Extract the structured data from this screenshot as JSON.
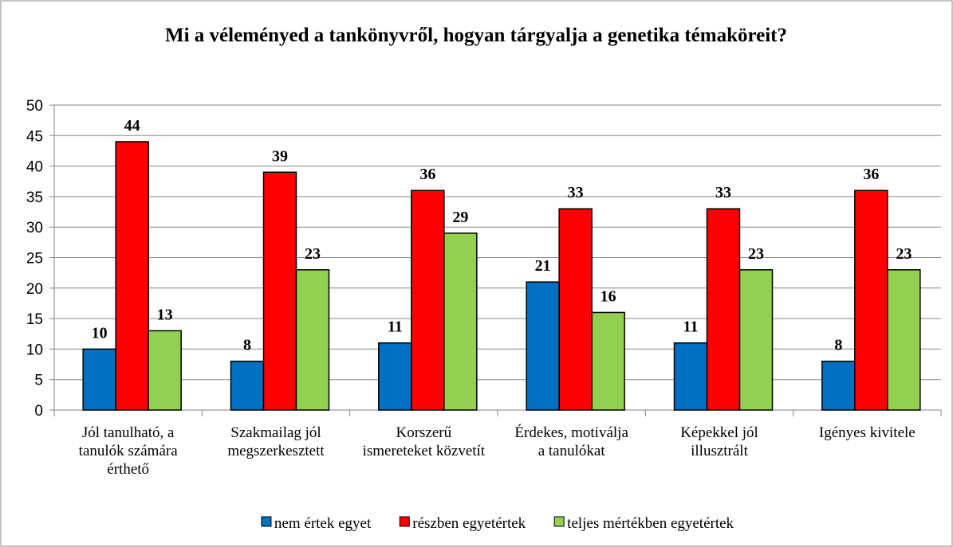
{
  "chart_data": {
    "type": "bar",
    "title": "Mi a véleményed a tankönyvről, hogyan tárgyalja a genetika témaköreit?",
    "categories": [
      "Jól tanulható, a tanulók számára érthető",
      "Szakmailag jól megszerkesztett",
      "Korszerű ismereteket közvetít",
      "Érdekes, motiválja a tanulókat",
      "Képekkel jól illusztrált",
      "Igényes kivitele"
    ],
    "series": [
      {
        "name": "nem értek egyet",
        "color": "#0070c0",
        "values": [
          10,
          8,
          11,
          21,
          11,
          8
        ]
      },
      {
        "name": "részben egyetértek",
        "color": "#ff0000",
        "values": [
          44,
          39,
          36,
          33,
          33,
          36
        ]
      },
      {
        "name": "teljes mértékben egyetértek",
        "color": "#92d050",
        "values": [
          13,
          23,
          29,
          16,
          23,
          23
        ]
      }
    ],
    "ylim": [
      0,
      50
    ],
    "yticks": [
      0,
      5,
      10,
      15,
      20,
      25,
      30,
      35,
      40,
      45,
      50
    ],
    "grid": true,
    "legend": "bottom"
  }
}
